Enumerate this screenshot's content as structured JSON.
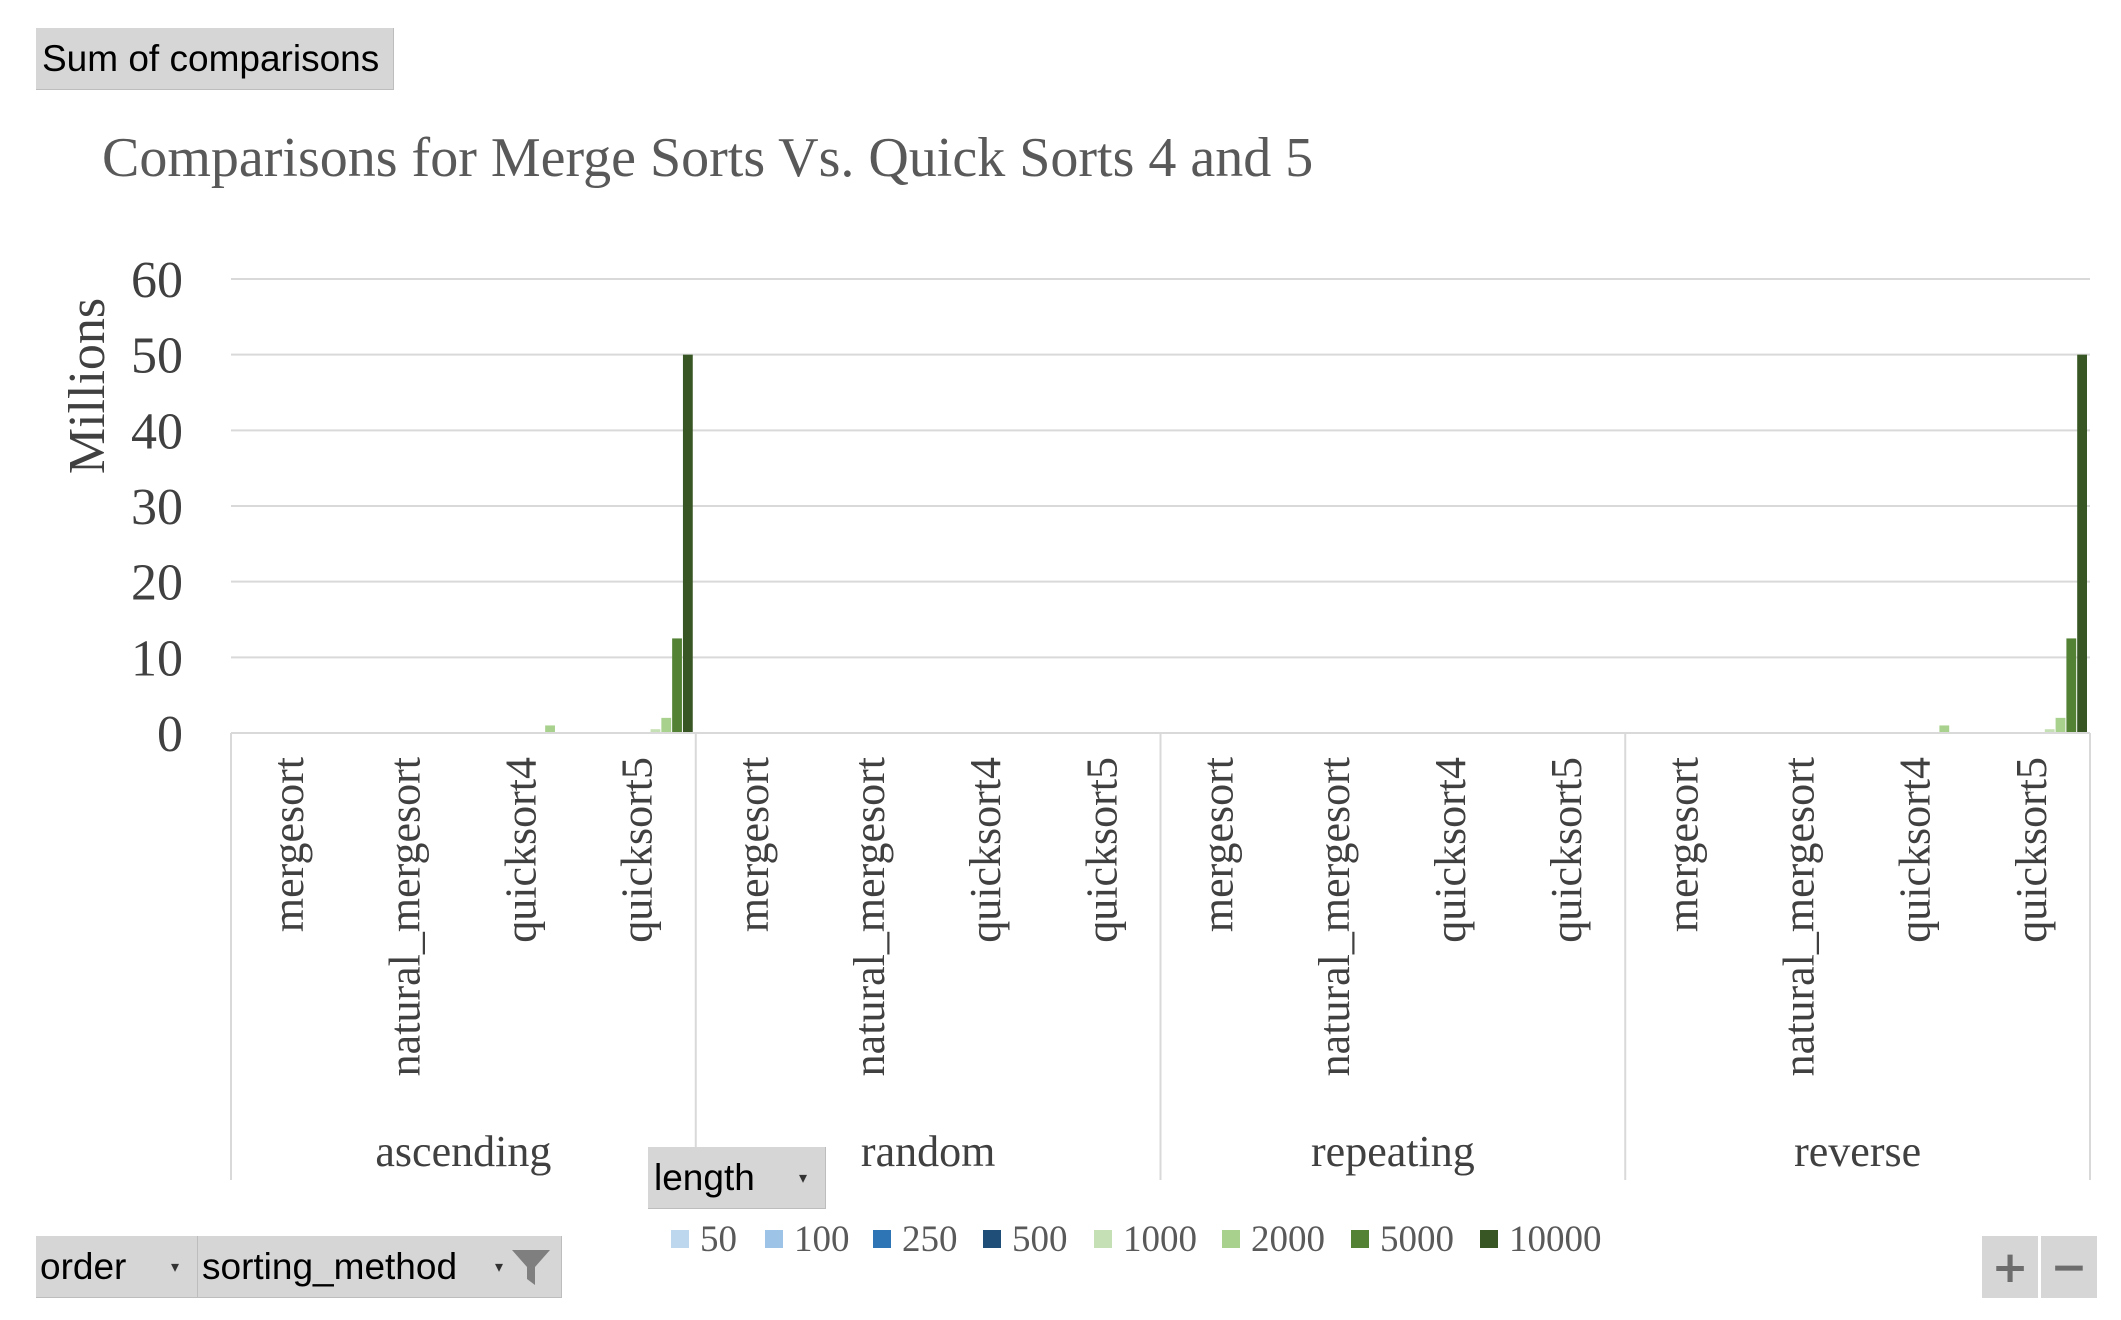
{
  "pivot": {
    "value_field": "Sum of comparisons",
    "legend_field": "length",
    "axis_fields": [
      "order",
      "sorting_method"
    ]
  },
  "icons": {
    "dropdown": "dropdown-arrow-icon",
    "filter": "filter-funnel-icon",
    "zoom_in": "plus-icon",
    "zoom_out": "minus-icon"
  },
  "zoom": {
    "in_label": "+",
    "out_label": "−"
  },
  "chart_data": {
    "type": "bar",
    "title": "Comparisons for Merge Sorts Vs. Quick Sorts 4 and 5",
    "ylabel": "Millions",
    "xlabel": "",
    "ylim": [
      0,
      60
    ],
    "yticks": [
      0,
      10,
      20,
      30,
      40,
      50,
      60
    ],
    "grid": true,
    "legend_position": "bottom",
    "groups": [
      "ascending",
      "random",
      "repeating",
      "reverse"
    ],
    "subcategories": [
      "mergesort",
      "natural_mergesort",
      "quicksort4",
      "quicksort5"
    ],
    "series": [
      {
        "name": "50",
        "color": "#bdd7ee",
        "values": [
          0,
          0,
          0,
          0.0013,
          0,
          0,
          0,
          0,
          0,
          0,
          0,
          0,
          0,
          0,
          0,
          0.0013
        ]
      },
      {
        "name": "100",
        "color": "#9dc3e6",
        "values": [
          0,
          0,
          0,
          0.005,
          0,
          0,
          0,
          0,
          0,
          0,
          0,
          0,
          0,
          0,
          0,
          0.005
        ]
      },
      {
        "name": "250",
        "color": "#2e75b6",
        "values": [
          0,
          0,
          0,
          0.031,
          0,
          0,
          0,
          0,
          0,
          0,
          0,
          0,
          0,
          0,
          0,
          0.031
        ]
      },
      {
        "name": "500",
        "color": "#1f4e79",
        "values": [
          0,
          0,
          0,
          0.125,
          0,
          0,
          0,
          0,
          0,
          0,
          0,
          0,
          0,
          0,
          0,
          0.125
        ]
      },
      {
        "name": "1000",
        "color": "#c5e0b4",
        "values": [
          0,
          0,
          0.1,
          0.5,
          0,
          0,
          0,
          0,
          0,
          0,
          0,
          0,
          0,
          0,
          0.1,
          0.5
        ]
      },
      {
        "name": "2000",
        "color": "#a9d18e",
        "values": [
          0,
          0,
          1,
          2,
          0,
          0,
          0,
          0,
          0,
          0,
          0,
          0,
          0,
          0,
          1,
          2
        ]
      },
      {
        "name": "5000",
        "color": "#548235",
        "values": [
          0,
          0,
          0,
          12.5,
          0,
          0,
          0,
          0,
          0,
          0,
          0,
          0,
          0,
          0,
          0,
          12.5
        ]
      },
      {
        "name": "10000",
        "color": "#375623",
        "values": [
          0,
          0,
          0,
          50,
          0,
          0,
          0,
          0,
          0,
          0,
          0,
          0,
          0,
          0,
          0,
          50
        ]
      }
    ]
  }
}
